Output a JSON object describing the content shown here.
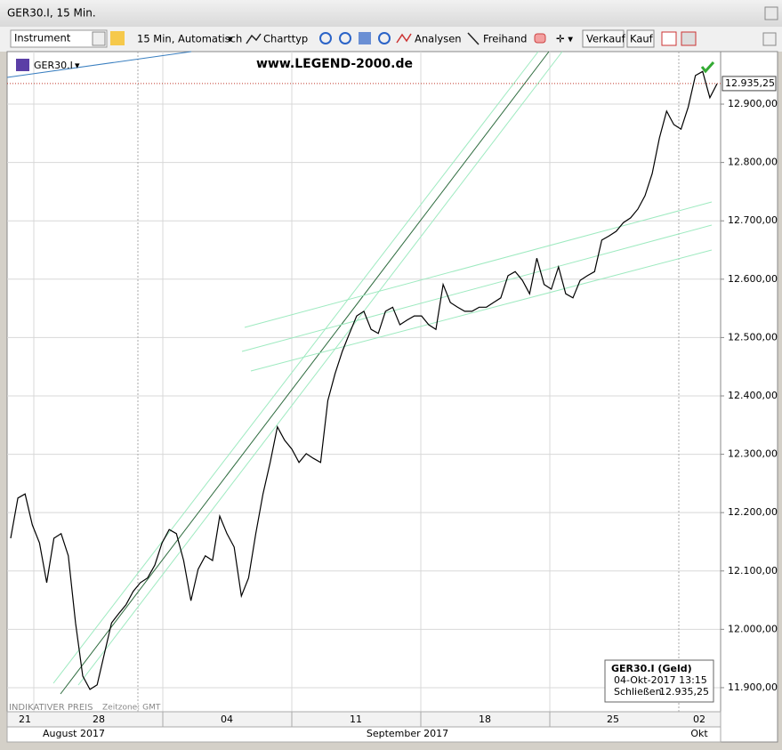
{
  "window": {
    "title": "GER30.I, 15 Min."
  },
  "toolbar": {
    "instrument": "Instrument",
    "interval": "15 Min,  Automatisch",
    "charttype": "Charttyp",
    "analyses": "Analysen",
    "freehand": "Freihand",
    "sell": "Verkauf",
    "buy": "Kauf"
  },
  "chart": {
    "type": "line",
    "symbol": "GER30.I",
    "watermark": "www.LEGEND-2000.de",
    "footer_left": "INDIKATIVER PREIS",
    "timezone": "Zeitzone: GMT",
    "ylim": [
      11874,
      12990
    ],
    "yticks": [
      {
        "value": 11900,
        "label": "11.900,00"
      },
      {
        "value": 12000,
        "label": "12.000,00"
      },
      {
        "value": 12100,
        "label": "12.100,00"
      },
      {
        "value": 12200,
        "label": "12.200,00"
      },
      {
        "value": 12300,
        "label": "12.300,00"
      },
      {
        "value": 12400,
        "label": "12.400,00"
      },
      {
        "value": 12500,
        "label": "12.500,00"
      },
      {
        "value": 12600,
        "label": "12.600,00"
      },
      {
        "value": 12700,
        "label": "12.700,00"
      },
      {
        "value": 12800,
        "label": "12.800,00"
      },
      {
        "value": 12900,
        "label": "12.900,00"
      }
    ],
    "grid": true,
    "days": [
      "21",
      "28",
      "04",
      "11",
      "18",
      "25",
      "02"
    ],
    "months": [
      "August 2017",
      "September 2017",
      "Okt"
    ],
    "price": {
      "color": "#000000",
      "values": [
        12156,
        12225,
        12232,
        12179,
        12148,
        12080,
        12156,
        12164,
        12126,
        12011,
        11920,
        11897,
        11905,
        11958,
        12011,
        12027,
        12042,
        12065,
        12080,
        12088,
        12110,
        12148,
        12171,
        12164,
        12118,
        12049,
        12103,
        12126,
        12118,
        12194,
        12164,
        12141,
        12057,
        12088,
        12164,
        12232,
        12286,
        12347,
        12324,
        12309,
        12286,
        12301,
        12293,
        12286,
        12392,
        12438,
        12476,
        12507,
        12537,
        12545,
        12514,
        12507,
        12545,
        12552,
        12522,
        12530,
        12537,
        12537,
        12522,
        12514,
        12591,
        12560,
        12552,
        12545,
        12545,
        12552,
        12552,
        12560,
        12568,
        12606,
        12613,
        12598,
        12575,
        12636,
        12591,
        12583,
        12621,
        12575,
        12568,
        12598,
        12606,
        12613,
        12667,
        12674,
        12682,
        12697,
        12705,
        12720,
        12743,
        12781,
        12842,
        12888,
        12865,
        12857,
        12895,
        12949,
        12956,
        12911,
        12935
      ]
    },
    "last": {
      "value": 12935.25,
      "label": "12.935,25"
    },
    "info": {
      "title": "GER30.I (Geld)",
      "time": "04-Okt-2017 13:15",
      "close_label": "Schließen",
      "close_value": "12.935,25"
    }
  }
}
